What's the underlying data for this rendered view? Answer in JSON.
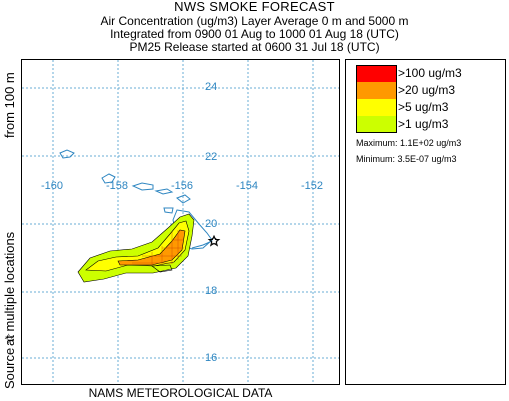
{
  "header": {
    "title": "NWS SMOKE FORECAST",
    "line2": "Air Concentration (ug/m3) Layer Average     0 m and  5000 m",
    "line3": "Integrated from 0900 01 Aug to 1000 01 Aug 18 (UTC)",
    "line4": "PM25 Release started at 0600 31 Jul 18 (UTC)"
  },
  "side_label": {
    "height": "from   100 m",
    "locations": "at multiple locations",
    "source": "Source ☆"
  },
  "map": {
    "lat_labels": [
      "24",
      "22",
      "20",
      "18",
      "16"
    ],
    "lon_labels": [
      "-160",
      "-158",
      "-156",
      "-154",
      "-152"
    ],
    "grid_color": "#6aaed6",
    "label_color": "#2e86c1",
    "source_marker": "source-star-icon"
  },
  "footer": {
    "text": "NAMS METEOROLOGICAL DATA"
  },
  "legend": {
    "items": [
      {
        "label": ">100 ug/m3",
        "color": "#ff0000"
      },
      {
        "label": ">20 ug/m3",
        "color": "#ff9900"
      },
      {
        "label": ">5 ug/m3",
        "color": "#ffff00"
      },
      {
        "label": ">1 ug/m3",
        "color": "#ccff00"
      }
    ],
    "maximum": "Maximum:  1.1E+02 ug/m3",
    "minimum": "Minimum:  3.5E-07 ug/m3"
  }
}
